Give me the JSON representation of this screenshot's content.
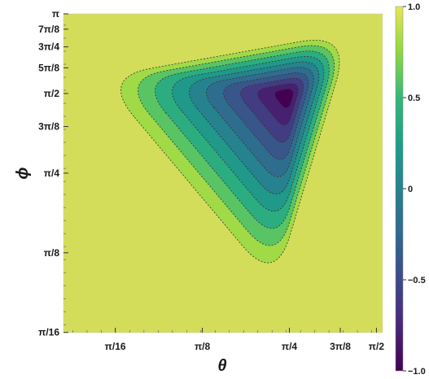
{
  "chart_data": {
    "type": "heatmap",
    "subtype": "contour",
    "xlabel": "θ",
    "ylabel": "ϕ",
    "x_scale": "log",
    "y_scale": "log",
    "xlim": [
      0.13,
      1.65
    ],
    "ylim": [
      0.196,
      3.1416
    ],
    "x_ticks": [
      {
        "label": "π/16",
        "value": 0.19635
      },
      {
        "label": "π/8",
        "value": 0.3927
      },
      {
        "label": "π/4",
        "value": 0.7854
      },
      {
        "label": "3π/8",
        "value": 1.1781
      },
      {
        "label": "π/2",
        "value": 1.5708
      }
    ],
    "y_ticks": [
      {
        "label": "π/16",
        "value": 0.19635
      },
      {
        "label": "π/8",
        "value": 0.3927
      },
      {
        "label": "π/4",
        "value": 0.7854
      },
      {
        "label": "3π/8",
        "value": 1.1781
      },
      {
        "label": "π/2",
        "value": 1.5708
      },
      {
        "label": "5π/8",
        "value": 1.9635
      },
      {
        "label": "3π/4",
        "value": 2.3562
      },
      {
        "label": "7π/8",
        "value": 2.7489
      },
      {
        "label": "π",
        "value": 3.1416
      }
    ],
    "minimum": {
      "theta": 0.7854,
      "phi": 1.5708,
      "value": -1.0
    },
    "contour_levels": [
      0.9,
      0.7,
      0.5,
      0.3,
      0.1,
      -0.1,
      -0.3,
      -0.5,
      -0.7,
      -0.9
    ],
    "colorbar": {
      "min": -1.0,
      "max": 1.0,
      "ticks": [
        "1.0",
        "0.5",
        "0",
        "−0.5",
        "−1.0"
      ],
      "tick_values": [
        1.0,
        0.5,
        0.0,
        -0.5,
        -1.0
      ],
      "colormap": "viridis"
    },
    "grid": false,
    "legend": "colorbar-right"
  }
}
